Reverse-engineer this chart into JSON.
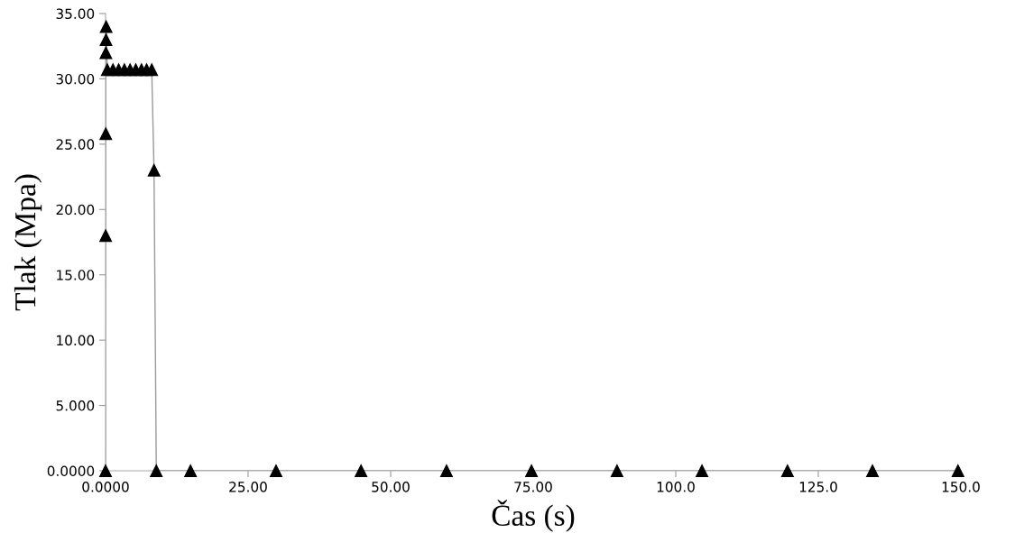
{
  "chart_data": {
    "type": "line",
    "xlabel": "Čas (s)",
    "ylabel": "Tlak (Mpa)",
    "x": [
      0,
      0.02,
      0.04,
      0.06,
      0.08,
      0.1,
      0.3,
      1.3,
      2.3,
      3.3,
      4.3,
      5.3,
      6.3,
      7.2,
      8.1,
      8.5,
      8.9,
      14.9,
      29.9,
      44.8,
      59.8,
      74.7,
      89.7,
      104.6,
      119.6,
      134.5,
      149.5
    ],
    "series": [
      {
        "color": "#000000",
        "values": [
          0,
          18,
          25.8,
          32,
          33,
          34,
          30.7,
          30.7,
          30.7,
          30.7,
          30.7,
          30.7,
          30.7,
          30.7,
          30.7,
          23,
          0,
          0,
          0,
          0,
          0,
          0,
          0,
          0,
          0,
          0,
          0
        ]
      }
    ],
    "xlim": [
      0,
      150
    ],
    "ylim": [
      0,
      35
    ],
    "xticks": [
      {
        "value": 0,
        "label": "0.0000"
      },
      {
        "value": 25,
        "label": "25.00"
      },
      {
        "value": 50,
        "label": "50.00"
      },
      {
        "value": 75,
        "label": "75.00"
      },
      {
        "value": 100,
        "label": "100.0"
      },
      {
        "value": 125,
        "label": "125.0"
      },
      {
        "value": 150,
        "label": "150.0"
      }
    ],
    "yticks": [
      {
        "value": 0,
        "label": "0.0000"
      },
      {
        "value": 5,
        "label": "5.000"
      },
      {
        "value": 10,
        "label": "10.00"
      },
      {
        "value": 15,
        "label": "15.00"
      },
      {
        "value": 20,
        "label": "20.00"
      },
      {
        "value": 25,
        "label": "25.00"
      },
      {
        "value": 30,
        "label": "30.00"
      },
      {
        "value": 35,
        "label": "35.00"
      }
    ],
    "marker": "triangle",
    "line_style": "solid",
    "grid": false,
    "legend": false
  }
}
